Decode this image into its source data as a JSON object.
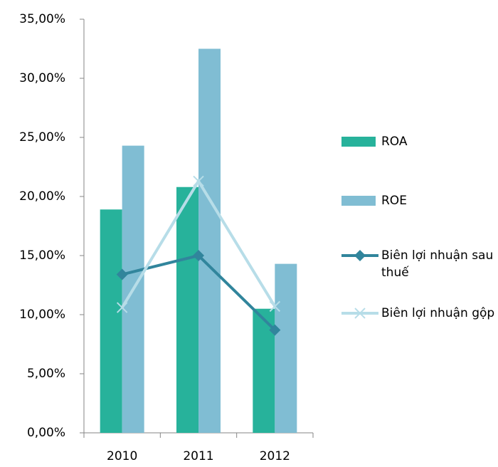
{
  "chart_data": {
    "type": "bar-line",
    "categories": [
      "2010",
      "2011",
      "2012"
    ],
    "series": [
      {
        "name": "ROA",
        "type": "bar",
        "color": "#27b29b",
        "values": [
          18.9,
          20.8,
          10.5
        ]
      },
      {
        "name": "ROE",
        "type": "bar",
        "color": "#80bdd3",
        "values": [
          24.3,
          32.5,
          14.3
        ]
      },
      {
        "name": "Biên lợi nhuận sau thuế",
        "type": "line",
        "marker": "diamond",
        "color": "#31859c",
        "values": [
          13.4,
          15.0,
          8.7
        ]
      },
      {
        "name": "Biên lợi nhuận gộp",
        "type": "line",
        "marker": "x",
        "color": "#b7dde8",
        "values": [
          10.6,
          21.3,
          10.7
        ]
      }
    ],
    "ylim": [
      0,
      35
    ],
    "yticks": [
      {
        "value": 0,
        "label": "0,00%"
      },
      {
        "value": 5,
        "label": "5,00%"
      },
      {
        "value": 10,
        "label": "10,00%"
      },
      {
        "value": 15,
        "label": "15,00%"
      },
      {
        "value": 20,
        "label": "20,00%"
      },
      {
        "value": 25,
        "label": "25,00%"
      },
      {
        "value": 30,
        "label": "30,00%"
      },
      {
        "value": 35,
        "label": "35,00%"
      }
    ],
    "grid": false,
    "legend": "right"
  }
}
